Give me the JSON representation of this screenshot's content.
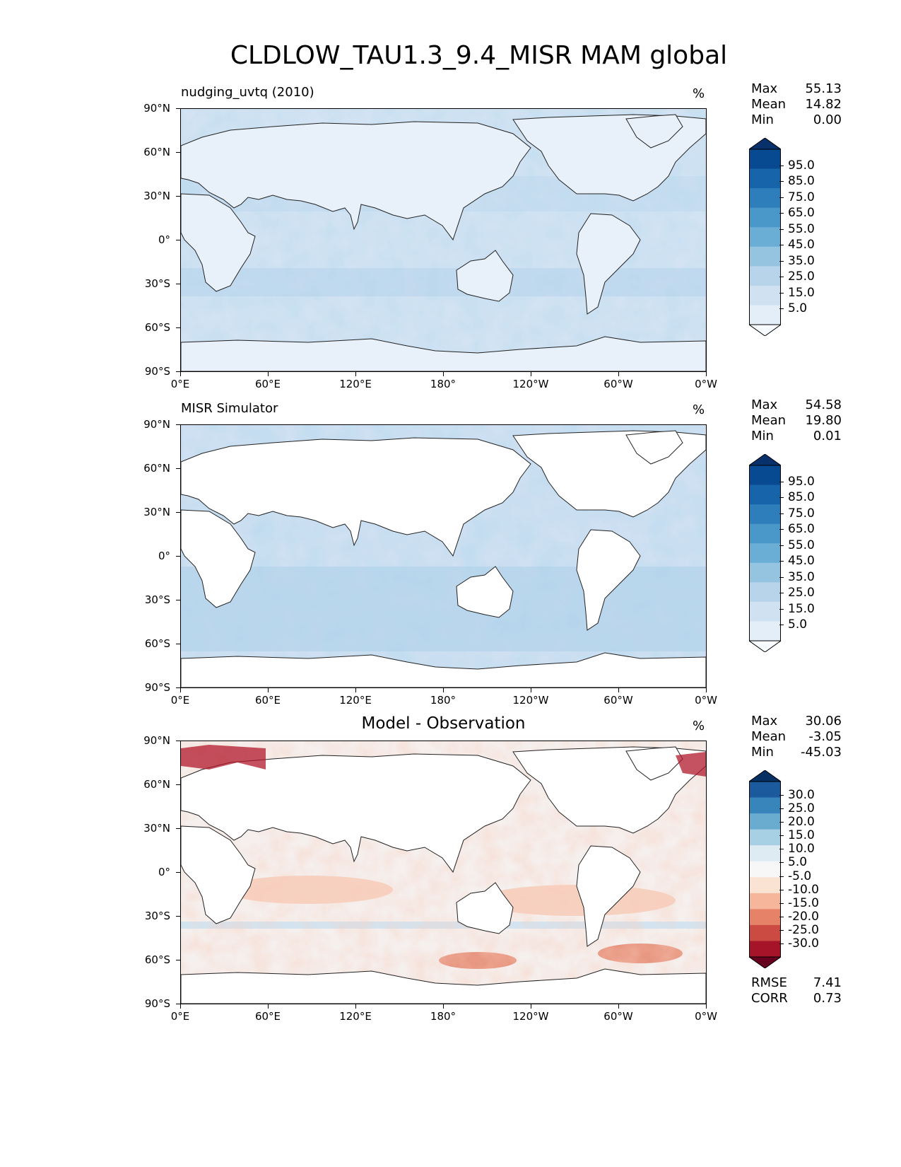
{
  "title": "CLDLOW_TAU1.3_9.4_MISR MAM global",
  "axes": {
    "lat_ticks": [
      "90°N",
      "60°N",
      "30°N",
      "0°",
      "30°S",
      "60°S",
      "90°S"
    ],
    "lon_ticks": [
      "0°E",
      "60°E",
      "120°E",
      "180°",
      "120°W",
      "60°W",
      "0°W"
    ]
  },
  "colors": {
    "blues": [
      "#f7fbff",
      "#e3eef9",
      "#d0e1f2",
      "#b7d4ea",
      "#94c4df",
      "#6aaed6",
      "#4a98c9",
      "#2e7ebc",
      "#1764ab",
      "#084a91",
      "#08306b"
    ],
    "diff": [
      "#67001f",
      "#a51429",
      "#cb4a42",
      "#e58267",
      "#f6b69b",
      "#fbe3d4",
      "#f7f7f7",
      "#deebf2",
      "#a7d0e4",
      "#6aacd0",
      "#3885bc",
      "#1b5a9c",
      "#053061"
    ]
  },
  "chart_data": [
    {
      "type": "heatmap",
      "panel": "test",
      "title": "nudging_uvtq (2010)",
      "units": "%",
      "stats": {
        "Max": "55.13",
        "Mean": "14.82",
        "Min": "0.00"
      },
      "colorbar_levels": [
        "95.0",
        "85.0",
        "75.0",
        "65.0",
        "55.0",
        "45.0",
        "35.0",
        "25.0",
        "15.0",
        "5.0"
      ],
      "xlim": [
        0,
        360
      ],
      "ylim": [
        -90,
        90
      ]
    },
    {
      "type": "heatmap",
      "panel": "reference",
      "title": "MISR Simulator",
      "units": "%",
      "stats": {
        "Max": "54.58",
        "Mean": "19.80",
        "Min": "0.01"
      },
      "colorbar_levels": [
        "95.0",
        "85.0",
        "75.0",
        "65.0",
        "55.0",
        "45.0",
        "35.0",
        "25.0",
        "15.0",
        "5.0"
      ],
      "xlim": [
        0,
        360
      ],
      "ylim": [
        -90,
        90
      ]
    },
    {
      "type": "heatmap",
      "panel": "difference",
      "title": "Model - Observation",
      "units": "%",
      "stats": {
        "Max": "30.06",
        "Mean": "-3.05",
        "Min": "-45.03"
      },
      "colorbar_levels": [
        "30.0",
        "25.0",
        "20.0",
        "15.0",
        "10.0",
        "5.0",
        "-5.0",
        "-10.0",
        "-15.0",
        "-20.0",
        "-25.0",
        "-30.0"
      ],
      "metrics": {
        "RMSE": "7.41",
        "CORR": "0.73"
      },
      "xlim": [
        0,
        360
      ],
      "ylim": [
        -90,
        90
      ]
    }
  ]
}
